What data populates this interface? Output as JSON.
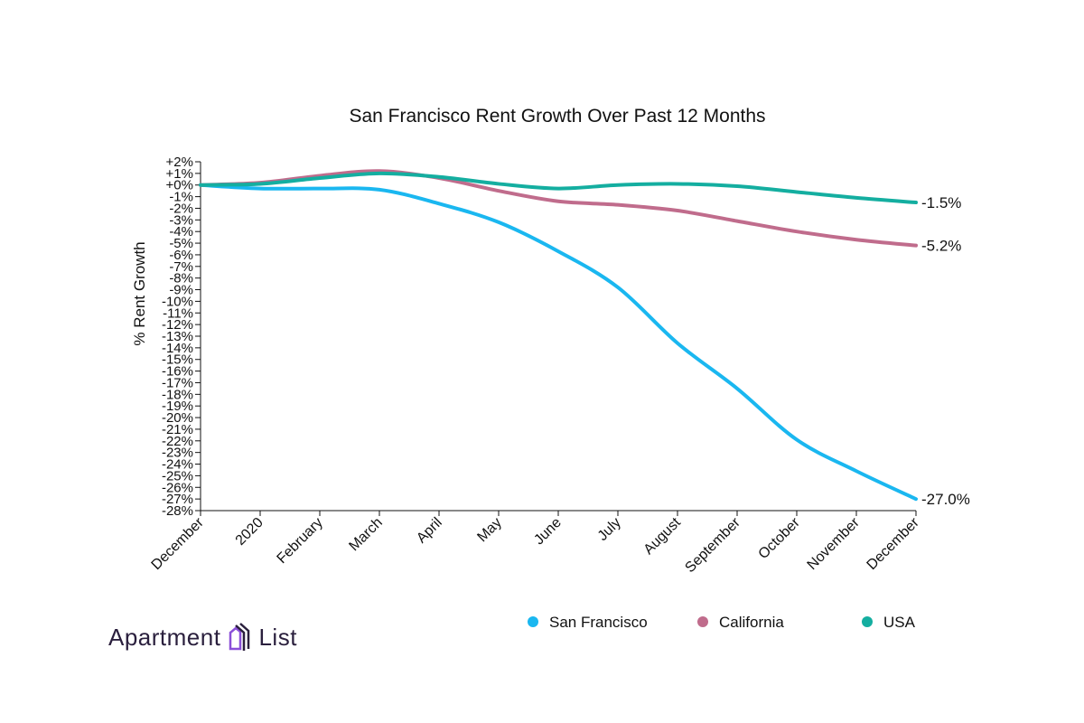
{
  "chart_data": {
    "type": "line",
    "title": "San Francisco Rent Growth Over Past 12 Months",
    "ylabel": "% Rent Growth",
    "xlabel": "",
    "ylim": [
      -28,
      2
    ],
    "yticks": [
      "+2%",
      "+1%",
      "+0%",
      "-1%",
      "-2%",
      "-3%",
      "-4%",
      "-5%",
      "-6%",
      "-7%",
      "-8%",
      "-9%",
      "-10%",
      "-11%",
      "-12%",
      "-13%",
      "-14%",
      "-15%",
      "-16%",
      "-17%",
      "-18%",
      "-19%",
      "-20%",
      "-21%",
      "-22%",
      "-23%",
      "-24%",
      "-25%",
      "-26%",
      "-27%",
      "-28%"
    ],
    "categories": [
      "December",
      "2020",
      "February",
      "March",
      "April",
      "May",
      "June",
      "July",
      "August",
      "September",
      "October",
      "November",
      "December"
    ],
    "grid": false,
    "legend_position": "bottom-right",
    "series": [
      {
        "name": "San Francisco",
        "color": "#1ab7f0",
        "end_label": "-27.0%",
        "values": [
          0,
          -0.3,
          -0.3,
          -0.4,
          -1.6,
          -3.2,
          -5.7,
          -8.8,
          -13.6,
          -17.5,
          -21.9,
          -24.6,
          -27.0
        ]
      },
      {
        "name": "California",
        "color": "#c06c8c",
        "end_label": "-5.2%",
        "values": [
          0,
          0.2,
          0.8,
          1.2,
          0.6,
          -0.5,
          -1.4,
          -1.7,
          -2.2,
          -3.1,
          -4.0,
          -4.7,
          -5.2
        ]
      },
      {
        "name": "USA",
        "color": "#14aea0",
        "end_label": "-1.5%",
        "values": [
          0,
          0.1,
          0.6,
          1.0,
          0.7,
          0.1,
          -0.3,
          0.0,
          0.1,
          -0.1,
          -0.6,
          -1.1,
          -1.5
        ]
      }
    ]
  },
  "logo": {
    "text_left": "Apartment",
    "text_right": "List"
  }
}
